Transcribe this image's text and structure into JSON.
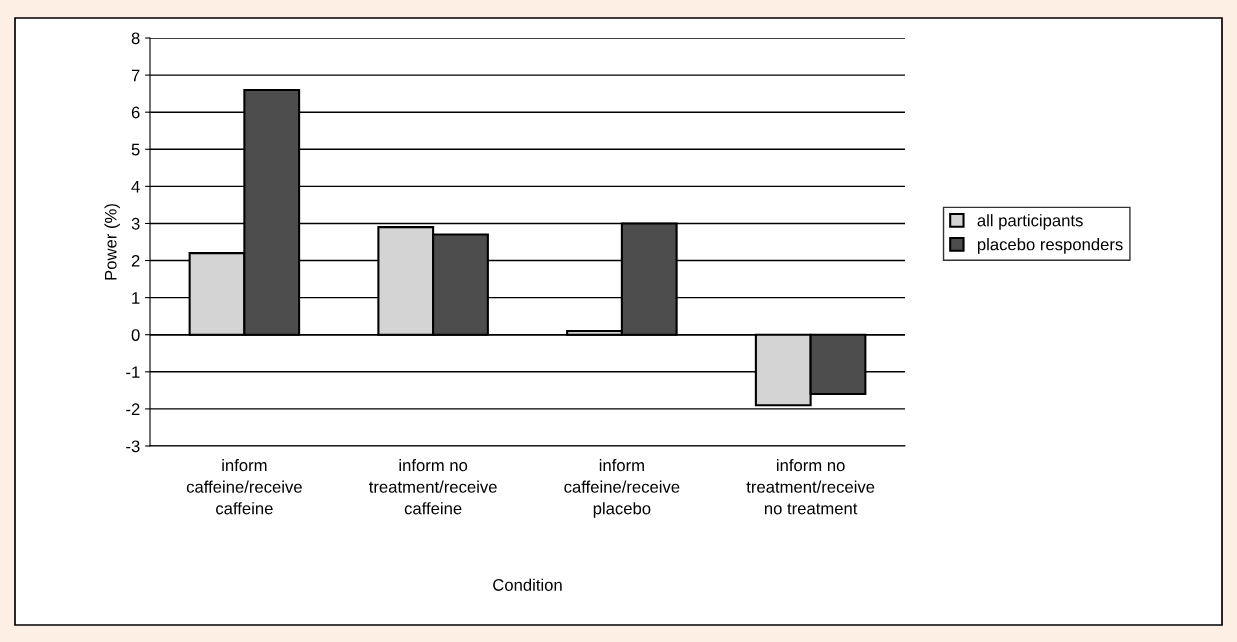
{
  "chart_data": {
    "type": "bar",
    "xlabel": "Condition",
    "ylabel": "Power (%)",
    "categories": [
      "inform caffeine/receive caffeine",
      "inform no treatment/receive caffeine",
      "inform caffeine/receive placebo",
      "inform no treatment/receive no treatment"
    ],
    "series": [
      {
        "name": "all participants",
        "color": "#d4d4d4",
        "values": [
          2.2,
          2.9,
          0.1,
          -1.9
        ]
      },
      {
        "name": "placebo responders",
        "color": "#4d4d4d",
        "values": [
          6.6,
          2.7,
          3.0,
          -1.6
        ]
      }
    ],
    "ylim": [
      -3,
      8
    ],
    "yticks": [
      -3,
      -2,
      -1,
      0,
      1,
      2,
      3,
      4,
      5,
      6,
      7,
      8
    ],
    "grid": "y",
    "legend": "right"
  }
}
